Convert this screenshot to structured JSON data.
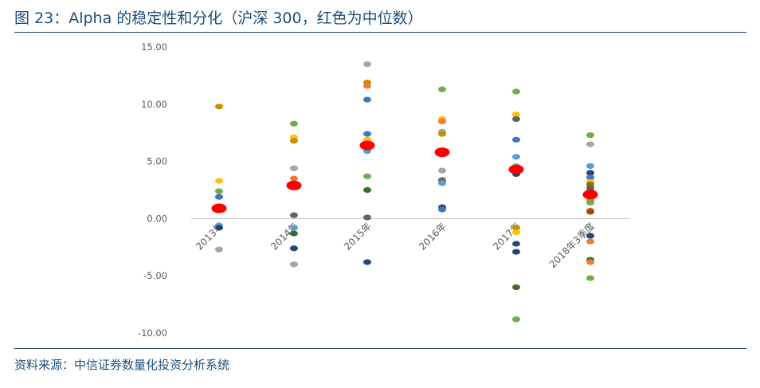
{
  "figure": {
    "title": "图 23：Alpha 的稳定性和分化（沪深 300，红色为中位数）",
    "source": "资料来源：中信证券数量化投资分析系统"
  },
  "chart_data": {
    "type": "scatter",
    "title": "",
    "xlabel": "",
    "ylabel": "",
    "ylim": [
      -10,
      15
    ],
    "yticks": [
      -10,
      -5,
      0,
      5,
      10,
      15
    ],
    "ytick_labels": [
      "-10.00",
      "-5.00",
      "0.00",
      "5.00",
      "10.00",
      "15.00"
    ],
    "categories": [
      "2013年",
      "2014年",
      "2015年",
      "2016年",
      "2017年",
      "2018年3季度"
    ],
    "grid": false,
    "legend": "none",
    "median_color": "#ff0000",
    "colors": {
      "blue": "#4472c4",
      "orange": "#ed7d31",
      "gray": "#a5a5a5",
      "gold": "#ffc000",
      "lightblue": "#5b9bd5",
      "green": "#70ad47",
      "navy": "#264478",
      "brown": "#9e480e",
      "dkgray": "#636363",
      "olive": "#997300",
      "lightgreen": "#43682b",
      "ochre": "#c59100"
    },
    "medians": [
      0.9,
      2.9,
      6.4,
      5.8,
      4.3,
      2.1
    ],
    "points": [
      [
        {
          "y": 9.8,
          "c": "ochre"
        },
        {
          "y": 3.3,
          "c": "gold"
        },
        {
          "y": 2.4,
          "c": "green"
        },
        {
          "y": 1.9,
          "c": "blue"
        },
        {
          "y": -0.6,
          "c": "lightblue"
        },
        {
          "y": -0.8,
          "c": "navy"
        },
        {
          "y": -2.7,
          "c": "gray"
        }
      ],
      [
        {
          "y": 8.3,
          "c": "green"
        },
        {
          "y": 7.1,
          "c": "gold"
        },
        {
          "y": 6.8,
          "c": "ochre"
        },
        {
          "y": 4.4,
          "c": "gray"
        },
        {
          "y": 3.5,
          "c": "orange"
        },
        {
          "y": 0.3,
          "c": "dkgray"
        },
        {
          "y": -0.8,
          "c": "lightblue"
        },
        {
          "y": -1.3,
          "c": "lightgreen"
        },
        {
          "y": -2.6,
          "c": "navy"
        },
        {
          "y": -4.0,
          "c": "gray"
        }
      ],
      [
        {
          "y": 13.5,
          "c": "gray"
        },
        {
          "y": 11.9,
          "c": "ochre"
        },
        {
          "y": 11.6,
          "c": "orange"
        },
        {
          "y": 10.4,
          "c": "blue"
        },
        {
          "y": 7.4,
          "c": "blue"
        },
        {
          "y": 6.9,
          "c": "gold"
        },
        {
          "y": 5.9,
          "c": "lightblue"
        },
        {
          "y": 3.7,
          "c": "green"
        },
        {
          "y": 2.5,
          "c": "lightgreen"
        },
        {
          "y": 0.1,
          "c": "dkgray"
        },
        {
          "y": -3.8,
          "c": "navy"
        }
      ],
      [
        {
          "y": 11.3,
          "c": "green"
        },
        {
          "y": 8.7,
          "c": "gold"
        },
        {
          "y": 8.5,
          "c": "orange"
        },
        {
          "y": 7.6,
          "c": "gray"
        },
        {
          "y": 7.4,
          "c": "ochre"
        },
        {
          "y": 4.2,
          "c": "gray"
        },
        {
          "y": 3.4,
          "c": "green"
        },
        {
          "y": 3.3,
          "c": "dkgray"
        },
        {
          "y": 3.1,
          "c": "lightblue"
        },
        {
          "y": 1.0,
          "c": "navy"
        },
        {
          "y": 0.8,
          "c": "blue"
        }
      ],
      [
        {
          "y": 11.1,
          "c": "green"
        },
        {
          "y": 9.1,
          "c": "gold"
        },
        {
          "y": 8.7,
          "c": "dkgray"
        },
        {
          "y": 6.9,
          "c": "blue"
        },
        {
          "y": 5.4,
          "c": "lightblue"
        },
        {
          "y": 4.6,
          "c": "gray"
        },
        {
          "y": 3.9,
          "c": "navy"
        },
        {
          "y": -0.8,
          "c": "ochre"
        },
        {
          "y": -1.2,
          "c": "gold"
        },
        {
          "y": -2.2,
          "c": "navy"
        },
        {
          "y": -2.9,
          "c": "navy"
        },
        {
          "y": -6.0,
          "c": "lightgreen"
        },
        {
          "y": -8.8,
          "c": "green"
        }
      ],
      [
        {
          "y": 7.3,
          "c": "green"
        },
        {
          "y": 6.5,
          "c": "gray"
        },
        {
          "y": 4.6,
          "c": "lightblue"
        },
        {
          "y": 4.0,
          "c": "navy"
        },
        {
          "y": 3.6,
          "c": "blue"
        },
        {
          "y": 3.2,
          "c": "gold"
        },
        {
          "y": 3.0,
          "c": "olive"
        },
        {
          "y": 2.7,
          "c": "dkgray"
        },
        {
          "y": 2.4,
          "c": "lightgreen"
        },
        {
          "y": 1.6,
          "c": "ochre"
        },
        {
          "y": 1.4,
          "c": "green"
        },
        {
          "y": 0.7,
          "c": "orange"
        },
        {
          "y": 0.6,
          "c": "brown"
        },
        {
          "y": -1.5,
          "c": "navy"
        },
        {
          "y": -2.0,
          "c": "orange"
        },
        {
          "y": -3.6,
          "c": "lightgreen"
        },
        {
          "y": -3.8,
          "c": "orange"
        },
        {
          "y": -5.2,
          "c": "green"
        }
      ]
    ]
  }
}
